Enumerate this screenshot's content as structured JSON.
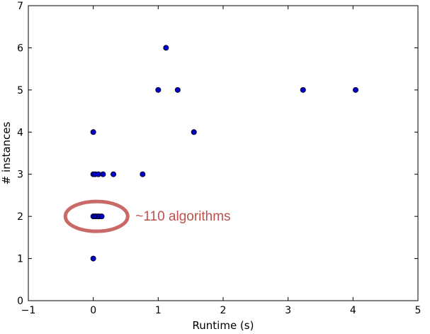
{
  "chart_data": {
    "type": "scatter",
    "xlabel": "Runtime (s)",
    "ylabel": "# instances",
    "xlim": [
      -1,
      5
    ],
    "ylim": [
      0,
      7
    ],
    "xticks": [
      -1,
      0,
      1,
      2,
      3,
      4,
      5
    ],
    "yticks": [
      0,
      1,
      2,
      3,
      4,
      5,
      6,
      7
    ],
    "grid": false,
    "points": [
      {
        "x": 0.0,
        "y": 1
      },
      {
        "x": 0.0,
        "y": 2
      },
      {
        "x": 0.03,
        "y": 2
      },
      {
        "x": 0.06,
        "y": 2
      },
      {
        "x": 0.09,
        "y": 2
      },
      {
        "x": 0.13,
        "y": 2
      },
      {
        "x": 0.0,
        "y": 3
      },
      {
        "x": 0.03,
        "y": 3
      },
      {
        "x": 0.08,
        "y": 3
      },
      {
        "x": 0.15,
        "y": 3
      },
      {
        "x": 0.31,
        "y": 3
      },
      {
        "x": 0.76,
        "y": 3
      },
      {
        "x": 0.0,
        "y": 4
      },
      {
        "x": 1.55,
        "y": 4
      },
      {
        "x": 1.0,
        "y": 5
      },
      {
        "x": 1.3,
        "y": 5
      },
      {
        "x": 3.23,
        "y": 5
      },
      {
        "x": 4.04,
        "y": 5
      },
      {
        "x": 1.12,
        "y": 6
      }
    ],
    "marker_color": "#0000cc",
    "annotation": {
      "text": "~110 algorithms",
      "color": "#c0504d",
      "target_x": 0.05,
      "target_y": 2
    }
  }
}
